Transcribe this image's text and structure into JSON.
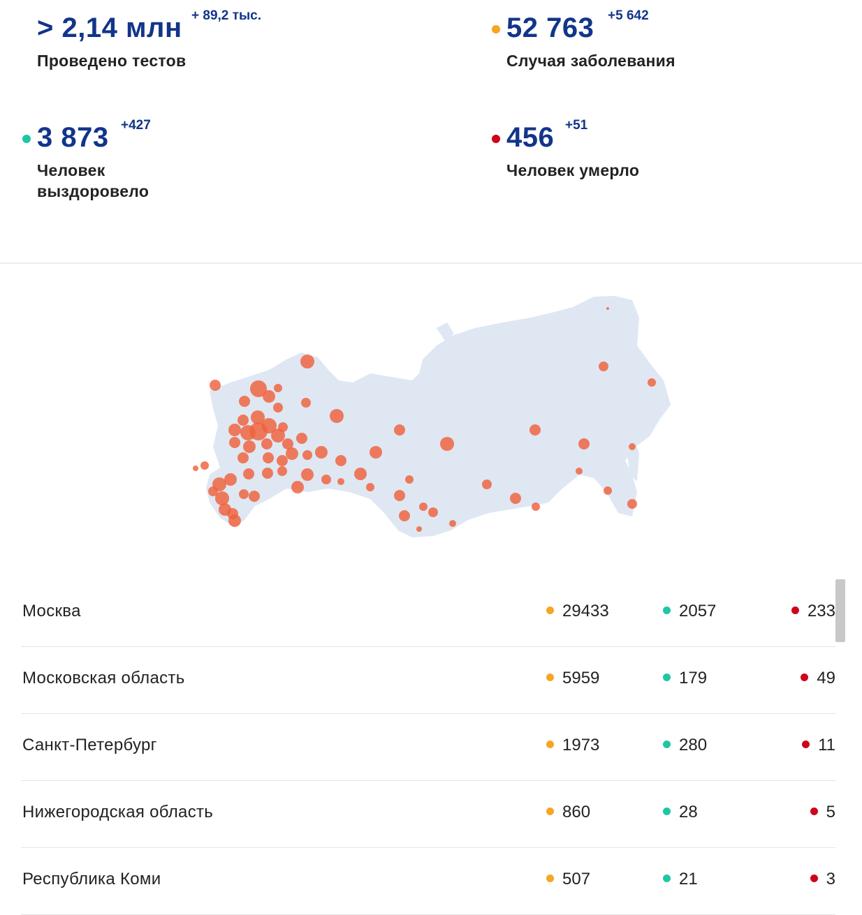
{
  "stats": {
    "tests": {
      "value": "> 2,14 млн",
      "delta": "+ 89,2 тыс.",
      "label": "Проведено тестов"
    },
    "cases": {
      "value": "52 763",
      "delta": "+5 642",
      "label": "Случая заболевания"
    },
    "recovered": {
      "value": "3 873",
      "delta": "+427",
      "label": "Человек выздоровело"
    },
    "deaths": {
      "value": "456",
      "delta": "+51",
      "label": "Человек умерло"
    }
  },
  "colors": {
    "cases": "#f5a623",
    "recovered": "#1ec6a4",
    "deaths": "#d0021b",
    "map_land": "#dfe7f3",
    "map_marker": "#f0603c",
    "number_blue": "#12358a"
  },
  "regions": [
    {
      "name": "Москва",
      "cases": "29433",
      "recovered": "2057",
      "deaths": "233"
    },
    {
      "name": "Московская область",
      "cases": "5959",
      "recovered": "179",
      "deaths": "49"
    },
    {
      "name": "Санкт-Петербург",
      "cases": "1973",
      "recovered": "280",
      "deaths": "11"
    },
    {
      "name": "Нижегородская область",
      "cases": "860",
      "recovered": "28",
      "deaths": "5"
    },
    {
      "name": "Республика Коми",
      "cases": "507",
      "recovered": "21",
      "deaths": "3"
    }
  ]
}
